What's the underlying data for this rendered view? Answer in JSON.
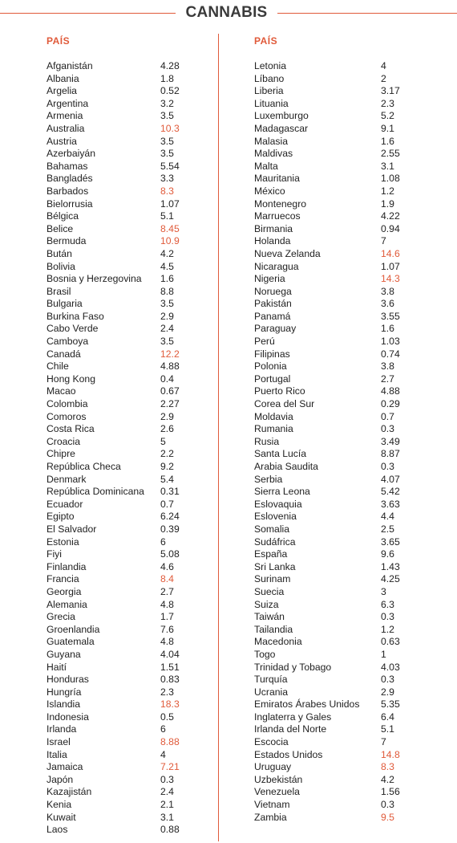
{
  "title": "CANNABIS",
  "accent_color": "#e05a3a",
  "columns": [
    {
      "header": "PAÍS",
      "rows": [
        {
          "country": "Afganistán",
          "value": "4.28",
          "highlight": false
        },
        {
          "country": "Albania",
          "value": "1.8",
          "highlight": false
        },
        {
          "country": "Argelia",
          "value": "0.52",
          "highlight": false
        },
        {
          "country": "Argentina",
          "value": "3.2",
          "highlight": false
        },
        {
          "country": "Armenia",
          "value": "3.5",
          "highlight": false
        },
        {
          "country": "Australia",
          "value": "10.3",
          "highlight": true
        },
        {
          "country": "Austria",
          "value": "3.5",
          "highlight": false
        },
        {
          "country": "Azerbaiyán",
          "value": "3.5",
          "highlight": false
        },
        {
          "country": "Bahamas",
          "value": "5.54",
          "highlight": false
        },
        {
          "country": "Bangladés",
          "value": "3.3",
          "highlight": false
        },
        {
          "country": "Barbados",
          "value": "8.3",
          "highlight": true
        },
        {
          "country": "Bielorrusia",
          "value": "1.07",
          "highlight": false
        },
        {
          "country": "Bélgica",
          "value": "5.1",
          "highlight": false
        },
        {
          "country": "Belice",
          "value": "8.45",
          "highlight": true
        },
        {
          "country": "Bermuda",
          "value": "10.9",
          "highlight": true
        },
        {
          "country": "Bután",
          "value": "4.2",
          "highlight": false
        },
        {
          "country": "Bolivia",
          "value": "4.5",
          "highlight": false
        },
        {
          "country": "Bosnia y Herzegovina",
          "value": "1.6",
          "highlight": false
        },
        {
          "country": "Brasil",
          "value": "8.8",
          "highlight": false
        },
        {
          "country": "Bulgaria",
          "value": "3.5",
          "highlight": false
        },
        {
          "country": "Burkina Faso",
          "value": "2.9",
          "highlight": false
        },
        {
          "country": "Cabo Verde",
          "value": "2.4",
          "highlight": false
        },
        {
          "country": "Camboya",
          "value": "3.5",
          "highlight": false
        },
        {
          "country": "Canadá",
          "value": "12.2",
          "highlight": true
        },
        {
          "country": "Chile",
          "value": "4.88",
          "highlight": false
        },
        {
          "country": "Hong Kong",
          "value": "0.4",
          "highlight": false
        },
        {
          "country": "Macao",
          "value": "0.67",
          "highlight": false
        },
        {
          "country": "Colombia",
          "value": "2.27",
          "highlight": false
        },
        {
          "country": "Comoros",
          "value": "2.9",
          "highlight": false
        },
        {
          "country": "Costa Rica",
          "value": "2.6",
          "highlight": false
        },
        {
          "country": "Croacia",
          "value": "5",
          "highlight": false
        },
        {
          "country": "Chipre",
          "value": "2.2",
          "highlight": false
        },
        {
          "country": "República Checa",
          "value": "9.2",
          "highlight": false
        },
        {
          "country": "Denmark",
          "value": "5.4",
          "highlight": false
        },
        {
          "country": "República Dominicana",
          "value": "0.31",
          "highlight": false
        },
        {
          "country": "Ecuador",
          "value": "0.7",
          "highlight": false
        },
        {
          "country": "Egipto",
          "value": "6.24",
          "highlight": false
        },
        {
          "country": "El Salvador",
          "value": "0.39",
          "highlight": false
        },
        {
          "country": "Estonia",
          "value": "6",
          "highlight": false
        },
        {
          "country": "Fiyi",
          "value": "5.08",
          "highlight": false
        },
        {
          "country": "Finlandia",
          "value": "4.6",
          "highlight": false
        },
        {
          "country": "Francia",
          "value": "8.4",
          "highlight": true
        },
        {
          "country": "Georgia",
          "value": "2.7",
          "highlight": false
        },
        {
          "country": "Alemania",
          "value": "4.8",
          "highlight": false
        },
        {
          "country": "Grecia",
          "value": "1.7",
          "highlight": false
        },
        {
          "country": "Groenlandia",
          "value": "7.6",
          "highlight": false
        },
        {
          "country": "Guatemala",
          "value": "4.8",
          "highlight": false
        },
        {
          "country": "Guyana",
          "value": "4.04",
          "highlight": false
        },
        {
          "country": "Haití",
          "value": "1.51",
          "highlight": false
        },
        {
          "country": "Honduras",
          "value": "0.83",
          "highlight": false
        },
        {
          "country": "Hungría",
          "value": "2.3",
          "highlight": false
        },
        {
          "country": "Islandia",
          "value": "18.3",
          "highlight": true
        },
        {
          "country": "Indonesia",
          "value": "0.5",
          "highlight": false
        },
        {
          "country": "Irlanda",
          "value": "6",
          "highlight": false
        },
        {
          "country": "Israel",
          "value": "8.88",
          "highlight": true
        },
        {
          "country": "Italia",
          "value": "4",
          "highlight": false
        },
        {
          "country": "Jamaica",
          "value": "7.21",
          "highlight": true
        },
        {
          "country": "Japón",
          "value": "0.3",
          "highlight": false
        },
        {
          "country": "Kazajistán",
          "value": "2.4",
          "highlight": false
        },
        {
          "country": "Kenia",
          "value": "2.1",
          "highlight": false
        },
        {
          "country": "Kuwait",
          "value": "3.1",
          "highlight": false
        },
        {
          "country": "Laos",
          "value": "0.88",
          "highlight": false
        }
      ]
    },
    {
      "header": "PAÍS",
      "rows": [
        {
          "country": "Letonia",
          "value": "4",
          "highlight": false
        },
        {
          "country": "Líbano",
          "value": "2",
          "highlight": false
        },
        {
          "country": "Liberia",
          "value": "3.17",
          "highlight": false
        },
        {
          "country": "Lituania",
          "value": "2.3",
          "highlight": false
        },
        {
          "country": "Luxemburgo",
          "value": "5.2",
          "highlight": false
        },
        {
          "country": "Madagascar",
          "value": "9.1",
          "highlight": false
        },
        {
          "country": "Malasia",
          "value": "1.6",
          "highlight": false
        },
        {
          "country": "Maldivas",
          "value": "2.55",
          "highlight": false
        },
        {
          "country": "Malta",
          "value": "3.1",
          "highlight": false
        },
        {
          "country": "Mauritania",
          "value": "1.08",
          "highlight": false
        },
        {
          "country": "México",
          "value": "1.2",
          "highlight": false
        },
        {
          "country": "Montenegro",
          "value": "1.9",
          "highlight": false
        },
        {
          "country": "Marruecos",
          "value": "4.22",
          "highlight": false
        },
        {
          "country": "Birmania",
          "value": "0.94",
          "highlight": false
        },
        {
          "country": "Holanda",
          "value": "7",
          "highlight": false
        },
        {
          "country": "Nueva Zelanda",
          "value": "14.6",
          "highlight": true
        },
        {
          "country": "Nicaragua",
          "value": "1.07",
          "highlight": false
        },
        {
          "country": "Nigeria",
          "value": "14.3",
          "highlight": true
        },
        {
          "country": "Noruega",
          "value": "3.8",
          "highlight": false
        },
        {
          "country": "Pakistán",
          "value": "3.6",
          "highlight": false
        },
        {
          "country": "Panamá",
          "value": "3.55",
          "highlight": false
        },
        {
          "country": "Paraguay",
          "value": "1.6",
          "highlight": false
        },
        {
          "country": "Perú",
          "value": "1.03",
          "highlight": false
        },
        {
          "country": "Filipinas",
          "value": "0.74",
          "highlight": false
        },
        {
          "country": "Polonia",
          "value": "3.8",
          "highlight": false
        },
        {
          "country": "Portugal",
          "value": "2.7",
          "highlight": false
        },
        {
          "country": "Puerto Rico",
          "value": "4.88",
          "highlight": false
        },
        {
          "country": "Corea del Sur",
          "value": "0.29",
          "highlight": false
        },
        {
          "country": "Moldavia",
          "value": "0.7",
          "highlight": false
        },
        {
          "country": "Rumania",
          "value": "0.3",
          "highlight": false
        },
        {
          "country": "Rusia",
          "value": "3.49",
          "highlight": false
        },
        {
          "country": "Santa Lucía",
          "value": "8.87",
          "highlight": false
        },
        {
          "country": "Arabia Saudita",
          "value": "0.3",
          "highlight": false
        },
        {
          "country": "Serbia",
          "value": "4.07",
          "highlight": false
        },
        {
          "country": "Sierra Leona",
          "value": "5.42",
          "highlight": false
        },
        {
          "country": "Eslovaquia",
          "value": "3.63",
          "highlight": false
        },
        {
          "country": "Eslovenia",
          "value": "4.4",
          "highlight": false
        },
        {
          "country": "Somalia",
          "value": "2.5",
          "highlight": false
        },
        {
          "country": "Sudáfrica",
          "value": "3.65",
          "highlight": false
        },
        {
          "country": "España",
          "value": "9.6",
          "highlight": false
        },
        {
          "country": "Sri Lanka",
          "value": "1.43",
          "highlight": false
        },
        {
          "country": "Surinam",
          "value": "4.25",
          "highlight": false
        },
        {
          "country": "Suecia",
          "value": "3",
          "highlight": false
        },
        {
          "country": "Suiza",
          "value": "6.3",
          "highlight": false
        },
        {
          "country": "Taiwán",
          "value": "0.3",
          "highlight": false
        },
        {
          "country": "Tailandia",
          "value": "1.2",
          "highlight": false
        },
        {
          "country": "Macedonia",
          "value": "0.63",
          "highlight": false
        },
        {
          "country": "Togo",
          "value": "1",
          "highlight": false
        },
        {
          "country": "Trinidad y Tobago",
          "value": "4.03",
          "highlight": false
        },
        {
          "country": "Turquía",
          "value": "0.3",
          "highlight": false
        },
        {
          "country": "Ucrania",
          "value": "2.9",
          "highlight": false
        },
        {
          "country": "Emiratos Árabes Unidos",
          "value": "5.35",
          "highlight": false
        },
        {
          "country": "Inglaterra y Gales",
          "value": "6.4",
          "highlight": false
        },
        {
          "country": "Irlanda del Norte",
          "value": "5.1",
          "highlight": false
        },
        {
          "country": "Escocia",
          "value": "7",
          "highlight": false
        },
        {
          "country": "Estados Unidos",
          "value": "14.8",
          "highlight": true
        },
        {
          "country": "Uruguay",
          "value": "8.3",
          "highlight": true
        },
        {
          "country": "Uzbekistán",
          "value": "4.2",
          "highlight": false
        },
        {
          "country": "Venezuela",
          "value": "1.56",
          "highlight": false
        },
        {
          "country": "Vietnam",
          "value": "0.3",
          "highlight": false
        },
        {
          "country": "Zambia",
          "value": "9.5",
          "highlight": true
        }
      ]
    }
  ]
}
